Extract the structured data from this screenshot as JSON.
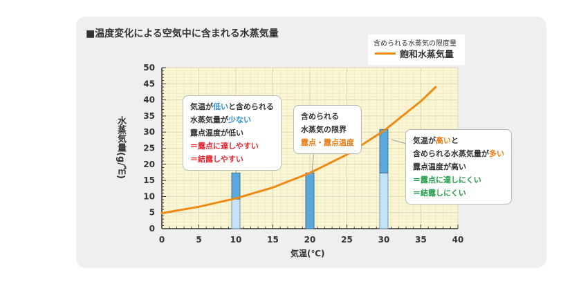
{
  "title": "■温度変化による空気中に含まれる水蒸気量",
  "legend": {
    "caption": "含められる水蒸気の限度量",
    "series_name": "飽和水蒸気量",
    "color": "#ee8a12"
  },
  "chart_data": {
    "type": "line",
    "xlabel": "気温(℃)",
    "ylabel": "水蒸気量(g/㎥)",
    "xlim": [
      0,
      40
    ],
    "ylim": [
      0,
      50
    ],
    "x_ticks": [
      0,
      5,
      10,
      15,
      20,
      25,
      30,
      35,
      40
    ],
    "y_ticks": [
      0,
      5,
      10,
      15,
      20,
      25,
      30,
      35,
      40,
      45,
      50
    ],
    "grid": true,
    "series": [
      {
        "name": "飽和水蒸気量",
        "color": "#ee8a12",
        "x": [
          0,
          5,
          10,
          15,
          20,
          25,
          30,
          35,
          37
        ],
        "y": [
          4.8,
          6.8,
          9.4,
          12.8,
          17.3,
          23.0,
          30.4,
          39.6,
          44.0
        ]
      }
    ],
    "bars": [
      {
        "x": 10,
        "bottom_value": 9.2,
        "top_value": 17.3
      },
      {
        "x": 20,
        "bottom_value": 0,
        "top_value": 17.3
      },
      {
        "x": 30,
        "bottom_value": 17.3,
        "top_value": 30.8
      }
    ]
  },
  "callouts": {
    "left": [
      {
        "parts": [
          {
            "text": "気温が",
            "tone": ""
          },
          {
            "text": "低い",
            "tone": "blue"
          },
          {
            "text": "と含められる",
            "tone": ""
          }
        ]
      },
      {
        "parts": [
          {
            "text": "水蒸気量が",
            "tone": ""
          },
          {
            "text": "少ない",
            "tone": "blue"
          }
        ]
      },
      {
        "parts": [
          {
            "text": "露点温度が低い",
            "tone": ""
          }
        ]
      },
      {
        "parts": [
          {
            "text": "＝露点に達しやすい",
            "tone": "red"
          }
        ]
      },
      {
        "parts": [
          {
            "text": "＝結露しやすい",
            "tone": "red"
          }
        ]
      }
    ],
    "middle": [
      {
        "parts": [
          {
            "text": "含められる",
            "tone": ""
          }
        ]
      },
      {
        "parts": [
          {
            "text": "水蒸気の限界",
            "tone": ""
          }
        ]
      },
      {
        "parts": [
          {
            "text": "露点・露点温度",
            "tone": "orange"
          }
        ]
      }
    ],
    "right": [
      {
        "parts": [
          {
            "text": "気温が",
            "tone": ""
          },
          {
            "text": "高い",
            "tone": "orange"
          },
          {
            "text": "と",
            "tone": ""
          }
        ]
      },
      {
        "parts": [
          {
            "text": "含められる水蒸気量が",
            "tone": ""
          },
          {
            "text": "多い",
            "tone": "orange"
          }
        ]
      },
      {
        "parts": [
          {
            "text": "露点温度が高い",
            "tone": ""
          }
        ]
      },
      {
        "parts": [
          {
            "text": "＝露点に達しにくい",
            "tone": "green"
          }
        ]
      },
      {
        "parts": [
          {
            "text": "＝結露しにくい",
            "tone": "green"
          }
        ]
      }
    ]
  }
}
